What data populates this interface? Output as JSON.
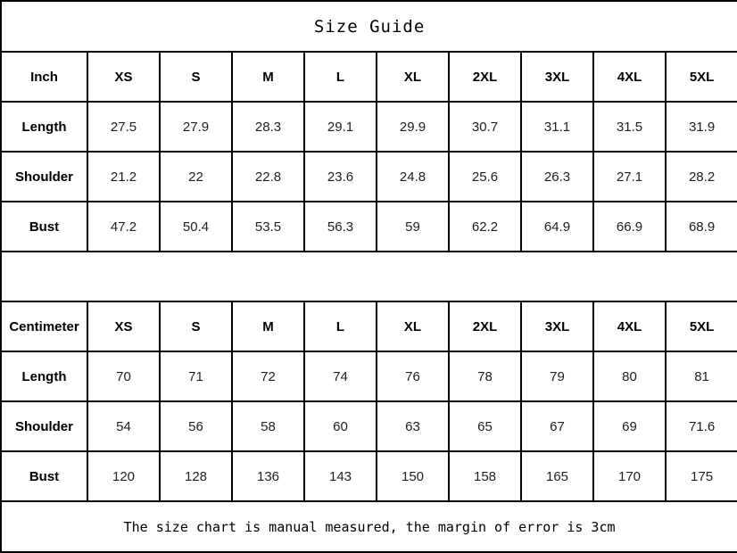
{
  "chart_data": {
    "type": "table",
    "title": "Size Guide",
    "footer_note": "The size chart is manual measured, the margin of error is 3cm",
    "tables": [
      {
        "unit_label": "Inch",
        "sizes": [
          "XS",
          "S",
          "M",
          "L",
          "XL",
          "2XL",
          "3XL",
          "4XL",
          "5XL"
        ],
        "rows": [
          {
            "label": "Length",
            "values": [
              "27.5",
              "27.9",
              "28.3",
              "29.1",
              "29.9",
              "30.7",
              "31.1",
              "31.5",
              "31.9"
            ]
          },
          {
            "label": "Shoulder",
            "values": [
              "21.2",
              "22",
              "22.8",
              "23.6",
              "24.8",
              "25.6",
              "26.3",
              "27.1",
              "28.2"
            ]
          },
          {
            "label": "Bust",
            "values": [
              "47.2",
              "50.4",
              "53.5",
              "56.3",
              "59",
              "62.2",
              "64.9",
              "66.9",
              "68.9"
            ]
          }
        ]
      },
      {
        "unit_label": "Centimeter",
        "sizes": [
          "XS",
          "S",
          "M",
          "L",
          "XL",
          "2XL",
          "3XL",
          "4XL",
          "5XL"
        ],
        "rows": [
          {
            "label": "Length",
            "values": [
              "70",
              "71",
              "72",
              "74",
              "76",
              "78",
              "79",
              "80",
              "81"
            ]
          },
          {
            "label": "Shoulder",
            "values": [
              "54",
              "56",
              "58",
              "60",
              "63",
              "65",
              "67",
              "69",
              "71.6"
            ]
          },
          {
            "label": "Bust",
            "values": [
              "120",
              "128",
              "136",
              "143",
              "150",
              "158",
              "165",
              "170",
              "175"
            ]
          }
        ]
      }
    ]
  }
}
